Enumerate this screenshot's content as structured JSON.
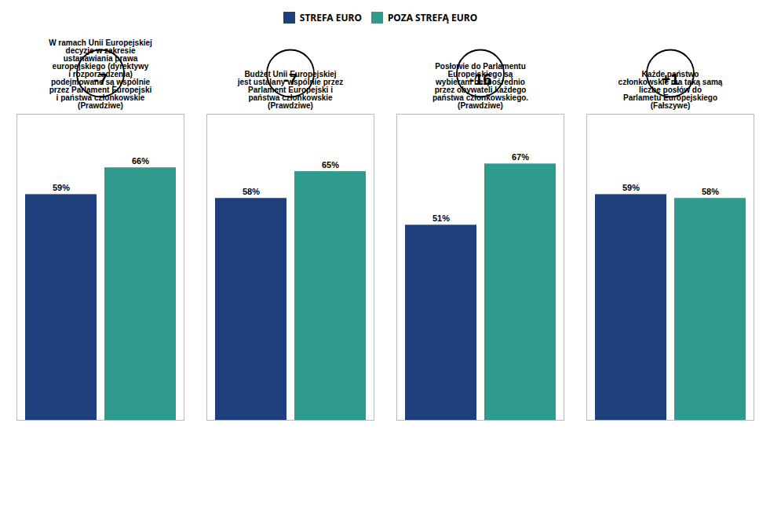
{
  "chart_data": {
    "type": "bar",
    "categories": [
      "W ramach Unii Europejskiej\ndecyzje w zakresie\nustanawiania prawa\neuropejskiego (dyrektywy\ni rozporządzenia)\npodejmowane są wspólnie\nprzez Parlament Europejski\ni państwa członkowskie\n(Prawdziwe)",
      "Budżet Unii Europejskiej\njest ustalany wspólnie przez\nParlament Europejski i\npaństwa członkowskie\n(Prawdziwe)",
      "Posłowie do Parlamentu\nEuropejskiego są\nwybierani bezpośrednio\nprzez obywateli każdego\npaństwa członkowskiego.\n(Prawdziwe)",
      "Każde państwo\nczłonkowskie ma taką samą\nliczbę posłów do\nParlametu Europejskiego\n(Fałszywe)"
    ],
    "series": [
      {
        "name": "STREFA EURO",
        "color": "#1F3E7C",
        "values": [
          59,
          58,
          51,
          59
        ],
        "value_labels": [
          "59%",
          "58%",
          "51%",
          "59%"
        ]
      },
      {
        "name": "POZA STREFĄ EURO",
        "color": "#2E9B8C",
        "values": [
          66,
          65,
          67,
          58
        ],
        "value_labels": [
          "66%",
          "65%",
          "67%",
          "58%"
        ]
      }
    ],
    "ylim": [
      0,
      80
    ],
    "tick_labels": "x",
    "grid": false,
    "legend": "top",
    "data_labels": true,
    "annotations": [
      "-7",
      "-7",
      "-16",
      "+1"
    ]
  }
}
